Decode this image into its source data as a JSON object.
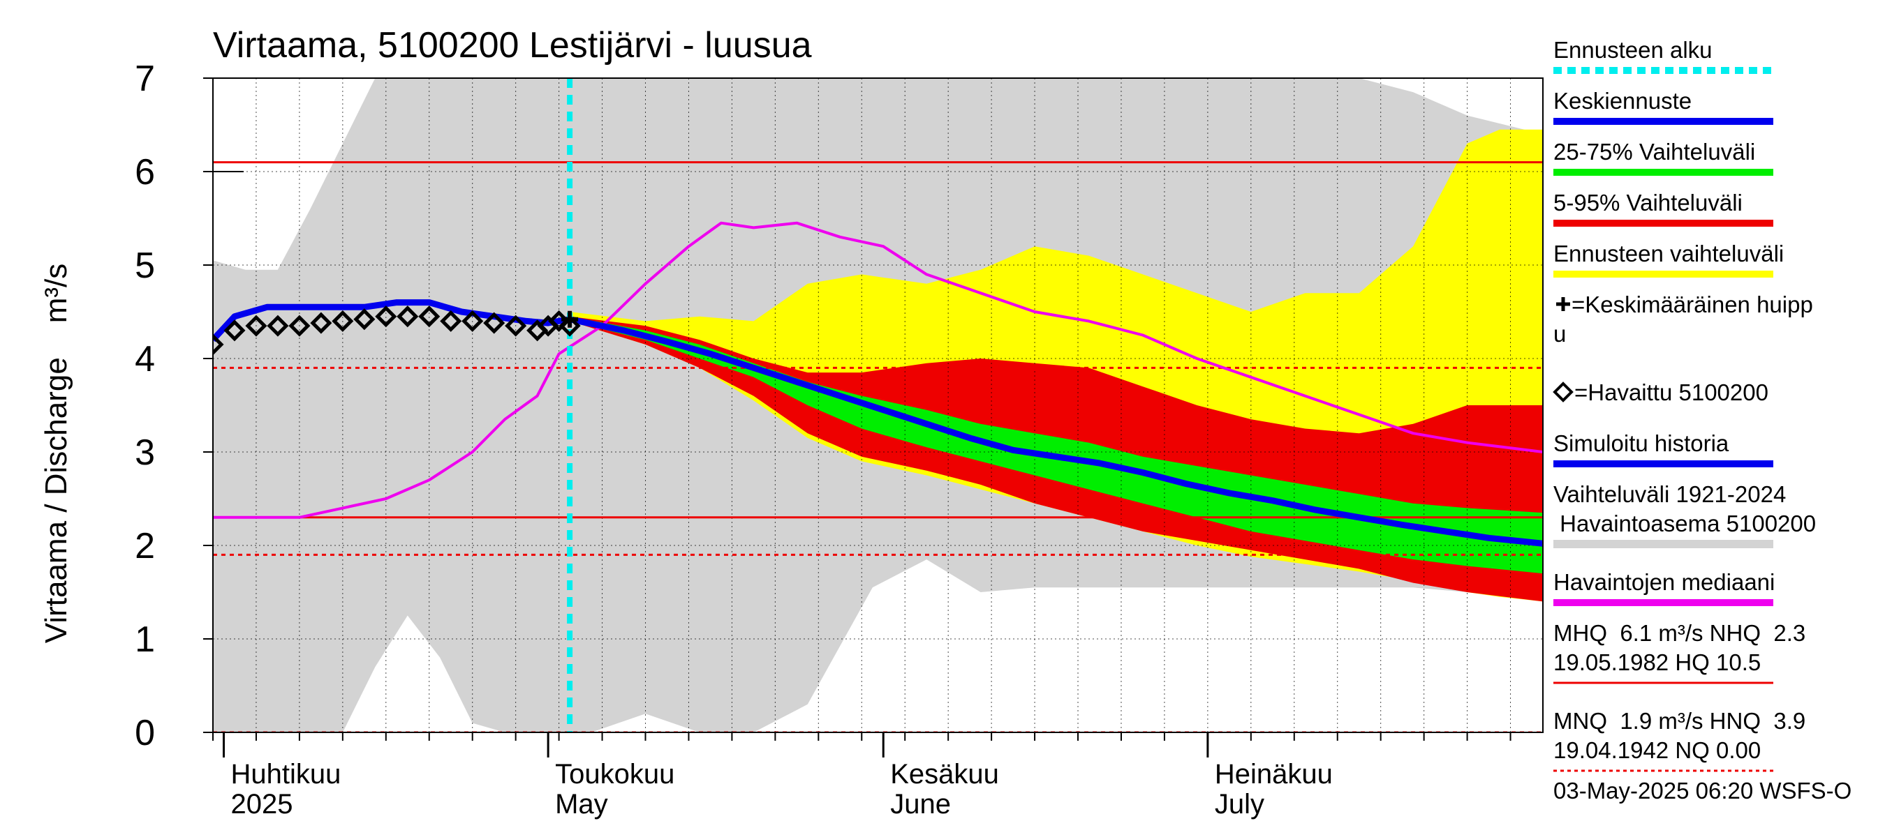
{
  "chart_data": {
    "type": "area",
    "title": "Virtaama, 5100200 Lestijärvi - luusua",
    "ylabel": "Virtaama / Discharge    m³/s",
    "ylim": [
      0,
      7
    ],
    "y_ticks": [
      0,
      1,
      2,
      3,
      4,
      5,
      6,
      7
    ],
    "x_range": [
      "2025-03-31",
      "2025-08-01"
    ],
    "x_month_labels": [
      {
        "date": "2025-04-01",
        "fi": "Huhtikuu",
        "en": "2025"
      },
      {
        "date": "2025-05-01",
        "fi": "Toukokuu",
        "en": "May"
      },
      {
        "date": "2025-06-01",
        "fi": "Kesäkuu",
        "en": "June"
      },
      {
        "date": "2025-07-01",
        "fi": "Heinäkuu",
        "en": "July"
      }
    ],
    "forecast_start": "2025-05-03",
    "reference_lines": [
      {
        "name": "MHQ",
        "value": 6.1,
        "color": "#ee0000",
        "dashed": false
      },
      {
        "name": "NHQ",
        "value": 2.3,
        "color": "#ee0000",
        "dashed": false
      },
      {
        "name": "MNQ",
        "value": 1.9,
        "color": "#ee0000",
        "dashed": true
      },
      {
        "name": "HNQ",
        "value": 3.9,
        "color": "#ee0000",
        "dashed": true
      },
      {
        "name": "NQ",
        "value": 0.0,
        "color": "#ee0000",
        "dashed": true
      }
    ],
    "history_range_band": {
      "x": [
        "2025-03-31",
        "2025-04-03",
        "2025-04-06",
        "2025-04-09",
        "2025-04-12",
        "2025-04-15",
        "2025-04-18",
        "2025-04-21",
        "2025-04-24",
        "2025-04-27",
        "2025-05-01",
        "2025-05-05",
        "2025-05-10",
        "2025-05-15",
        "2025-05-20",
        "2025-05-25",
        "2025-05-31",
        "2025-06-05",
        "2025-06-10",
        "2025-06-15",
        "2025-06-20",
        "2025-06-25",
        "2025-06-30",
        "2025-07-05",
        "2025-07-10",
        "2025-07-15",
        "2025-07-20",
        "2025-07-25",
        "2025-08-01"
      ],
      "low": [
        0,
        0,
        0,
        0,
        0,
        0.7,
        1.25,
        0.8,
        0.1,
        0,
        0,
        0,
        0.2,
        0,
        0,
        0.3,
        1.55,
        1.85,
        1.5,
        1.55,
        1.55,
        1.55,
        1.55,
        1.55,
        1.55,
        1.55,
        1.55,
        1.5,
        1.5
      ],
      "high": [
        5.05,
        4.95,
        4.95,
        5.6,
        6.3,
        7,
        7,
        7,
        7,
        7,
        7,
        7,
        7,
        7,
        7,
        7,
        7,
        7,
        7,
        7,
        7,
        7,
        7,
        7,
        7,
        7,
        6.85,
        6.6,
        6.4
      ]
    },
    "forecast_range_yellow": {
      "x": [
        "2025-05-03",
        "2025-05-10",
        "2025-05-15",
        "2025-05-20",
        "2025-05-25",
        "2025-05-30",
        "2025-06-05",
        "2025-06-10",
        "2025-06-15",
        "2025-06-20",
        "2025-06-25",
        "2025-06-30",
        "2025-07-05",
        "2025-07-10",
        "2025-07-15",
        "2025-07-20",
        "2025-07-25",
        "2025-07-28",
        "2025-08-01"
      ],
      "low": [
        4.4,
        4.15,
        3.9,
        3.55,
        3.15,
        2.9,
        2.75,
        2.6,
        2.45,
        2.3,
        2.15,
        2.0,
        1.88,
        1.8,
        1.72,
        1.62,
        1.5,
        1.45,
        1.4
      ],
      "high": [
        4.5,
        4.4,
        4.45,
        4.4,
        4.8,
        4.9,
        4.8,
        4.95,
        5.2,
        5.1,
        4.9,
        4.7,
        4.5,
        4.7,
        4.7,
        5.2,
        6.3,
        6.45,
        6.45
      ]
    },
    "forecast_range_5_95": {
      "x": [
        "2025-05-03",
        "2025-05-10",
        "2025-05-15",
        "2025-05-20",
        "2025-05-25",
        "2025-05-30",
        "2025-06-05",
        "2025-06-10",
        "2025-06-15",
        "2025-06-20",
        "2025-06-25",
        "2025-06-30",
        "2025-07-05",
        "2025-07-10",
        "2025-07-15",
        "2025-07-20",
        "2025-07-25",
        "2025-08-01"
      ],
      "low": [
        4.4,
        4.15,
        3.9,
        3.6,
        3.2,
        2.95,
        2.8,
        2.65,
        2.45,
        2.3,
        2.15,
        2.05,
        1.95,
        1.85,
        1.75,
        1.6,
        1.5,
        1.4
      ],
      "high": [
        4.45,
        4.35,
        4.2,
        4.0,
        3.85,
        3.85,
        3.95,
        4.0,
        3.95,
        3.9,
        3.7,
        3.5,
        3.35,
        3.25,
        3.2,
        3.3,
        3.5,
        3.5
      ]
    },
    "forecast_range_25_75": {
      "x": [
        "2025-05-03",
        "2025-05-10",
        "2025-05-15",
        "2025-05-20",
        "2025-05-25",
        "2025-05-30",
        "2025-06-05",
        "2025-06-10",
        "2025-06-15",
        "2025-06-20",
        "2025-06-25",
        "2025-06-30",
        "2025-07-05",
        "2025-07-10",
        "2025-07-15",
        "2025-07-20",
        "2025-07-25",
        "2025-08-01"
      ],
      "low": [
        4.4,
        4.2,
        4.0,
        3.8,
        3.5,
        3.25,
        3.05,
        2.9,
        2.75,
        2.6,
        2.45,
        2.3,
        2.15,
        2.05,
        1.95,
        1.85,
        1.78,
        1.7
      ],
      "high": [
        4.45,
        4.3,
        4.15,
        3.95,
        3.75,
        3.6,
        3.45,
        3.3,
        3.2,
        3.1,
        2.95,
        2.85,
        2.75,
        2.65,
        2.55,
        2.45,
        2.4,
        2.35
      ]
    },
    "series": [
      {
        "name": "Keskiennuste",
        "color": "#0000ee",
        "x": [
          "2025-05-03",
          "2025-05-08",
          "2025-05-12",
          "2025-05-16",
          "2025-05-20",
          "2025-05-24",
          "2025-05-28",
          "2025-06-01",
          "2025-06-05",
          "2025-06-09",
          "2025-06-13",
          "2025-06-17",
          "2025-06-21",
          "2025-06-25",
          "2025-06-29",
          "2025-07-03",
          "2025-07-07",
          "2025-07-11",
          "2025-07-15",
          "2025-07-19",
          "2025-07-23",
          "2025-07-27",
          "2025-08-01"
        ],
        "y": [
          4.42,
          4.3,
          4.18,
          4.05,
          3.9,
          3.75,
          3.6,
          3.45,
          3.3,
          3.15,
          3.02,
          2.95,
          2.88,
          2.78,
          2.66,
          2.56,
          2.48,
          2.38,
          2.3,
          2.22,
          2.15,
          2.08,
          2.02
        ]
      },
      {
        "name": "Simuloitu historia",
        "color": "#0000ee",
        "x": [
          "2025-03-31",
          "2025-04-02",
          "2025-04-05",
          "2025-04-08",
          "2025-04-11",
          "2025-04-14",
          "2025-04-17",
          "2025-04-20",
          "2025-04-23",
          "2025-04-26",
          "2025-04-29",
          "2025-05-01",
          "2025-05-03"
        ],
        "y": [
          4.2,
          4.45,
          4.55,
          4.55,
          4.55,
          4.55,
          4.6,
          4.6,
          4.5,
          4.45,
          4.4,
          4.38,
          4.42
        ]
      },
      {
        "name": "Havaintojen mediaani",
        "color": "#ee00ee",
        "x": [
          "2025-03-31",
          "2025-04-08",
          "2025-04-12",
          "2025-04-16",
          "2025-04-20",
          "2025-04-24",
          "2025-04-27",
          "2025-04-30",
          "2025-05-02",
          "2025-05-06",
          "2025-05-10",
          "2025-05-14",
          "2025-05-17",
          "2025-05-20",
          "2025-05-24",
          "2025-05-28",
          "2025-06-01",
          "2025-06-05",
          "2025-06-10",
          "2025-06-15",
          "2025-06-20",
          "2025-06-25",
          "2025-06-30",
          "2025-07-05",
          "2025-07-10",
          "2025-07-15",
          "2025-07-20",
          "2025-07-25",
          "2025-08-01"
        ],
        "y": [
          2.3,
          2.3,
          2.4,
          2.5,
          2.7,
          3.0,
          3.35,
          3.6,
          4.05,
          4.35,
          4.8,
          5.2,
          5.45,
          5.4,
          5.45,
          5.3,
          5.2,
          4.9,
          4.7,
          4.5,
          4.4,
          4.25,
          4.0,
          3.8,
          3.6,
          3.4,
          3.2,
          3.1,
          3.0
        ]
      },
      {
        "name": "Havaittu 5100200",
        "color": "#000000",
        "marker": "diamond",
        "x": [
          "2025-03-31",
          "2025-04-02",
          "2025-04-04",
          "2025-04-06",
          "2025-04-08",
          "2025-04-10",
          "2025-04-12",
          "2025-04-14",
          "2025-04-16",
          "2025-04-18",
          "2025-04-20",
          "2025-04-22",
          "2025-04-24",
          "2025-04-26",
          "2025-04-28",
          "2025-04-30",
          "2025-05-01",
          "2025-05-02",
          "2025-05-03"
        ],
        "y": [
          4.15,
          4.3,
          4.35,
          4.35,
          4.35,
          4.38,
          4.4,
          4.42,
          4.45,
          4.45,
          4.45,
          4.4,
          4.4,
          4.38,
          4.35,
          4.3,
          4.35,
          4.4,
          4.35
        ]
      }
    ],
    "mean_peak_marker": {
      "date": "2025-05-03",
      "value": 4.42
    },
    "legend": [
      {
        "label": "Ennusteen alku",
        "color": "#00eeee",
        "style": "dashed"
      },
      {
        "label": "Keskiennuste",
        "color": "#0000ee",
        "style": "line"
      },
      {
        "label": "25-75% Vaihteluväli",
        "color": "#00ee00",
        "style": "line"
      },
      {
        "label": "5-95% Vaihteluväli",
        "color": "#ee0000",
        "style": "line"
      },
      {
        "label": "Ennusteen vaihteluväli",
        "color": "#ffff00",
        "style": "line"
      },
      {
        "label": "=Keskimääräinen huipp",
        "label2": "u",
        "color": "#000000",
        "style": "plus"
      },
      {
        "label": "=Havaittu 5100200",
        "color": "#000000",
        "style": "diamond"
      },
      {
        "label": "Simuloitu historia",
        "color": "#0000ee",
        "style": "line"
      },
      {
        "label": "Vaihteluväli 1921-2024",
        "label2": " Havaintoasema 5100200",
        "color": "#d3d3d3",
        "style": "line"
      },
      {
        "label": "Havaintojen mediaani",
        "color": "#ee00ee",
        "style": "line"
      },
      {
        "label": "MHQ  6.1 m³/s NHQ  2.3",
        "label2": "19.05.1982 HQ 10.5",
        "color": "#ee0000",
        "style": "thin"
      },
      {
        "label": "MNQ  1.9 m³/s HNQ  3.9",
        "label2": "19.04.1942 NQ 0.00",
        "color": "#ee0000",
        "style": "dotted"
      }
    ],
    "footer": "03-May-2025 06:20 WSFS-O"
  }
}
